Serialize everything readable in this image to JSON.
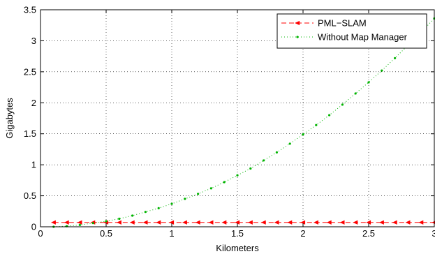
{
  "chart_data": {
    "type": "line",
    "xlabel": "Kilometers",
    "ylabel": "Gigabytes",
    "xlim": [
      0,
      3
    ],
    "ylim": [
      0,
      3.5
    ],
    "x_ticks": [
      "0",
      "0.5",
      "1",
      "1.5",
      "2",
      "2.5",
      "3"
    ],
    "y_ticks": [
      "0",
      "0.5",
      "1",
      "1.5",
      "2",
      "2.5",
      "3",
      "3.5"
    ],
    "grid": true,
    "legend_position": "top-right",
    "series": [
      {
        "name": "PML−SLAM",
        "color": "#ff0000",
        "line_style": "dashed",
        "marker": "left-triangle",
        "x": [
          0.1,
          0.2,
          0.3,
          0.4,
          0.5,
          0.6,
          0.7,
          0.8,
          0.9,
          1.0,
          1.1,
          1.2,
          1.3,
          1.4,
          1.5,
          1.6,
          1.7,
          1.8,
          1.9,
          2.0,
          2.1,
          2.2,
          2.3,
          2.4,
          2.5,
          2.6,
          2.7,
          2.8,
          2.9,
          3.0
        ],
        "y": [
          0.07,
          0.07,
          0.07,
          0.07,
          0.07,
          0.07,
          0.07,
          0.07,
          0.07,
          0.07,
          0.07,
          0.07,
          0.07,
          0.07,
          0.07,
          0.07,
          0.07,
          0.07,
          0.07,
          0.07,
          0.07,
          0.07,
          0.07,
          0.07,
          0.07,
          0.07,
          0.07,
          0.07,
          0.07,
          0.07
        ]
      },
      {
        "name": "Without Map Manager",
        "color": "#00b400",
        "line_style": "dotted",
        "marker": "point",
        "x": [
          0.1,
          0.2,
          0.3,
          0.4,
          0.5,
          0.6,
          0.7,
          0.8,
          0.9,
          1.0,
          1.1,
          1.2,
          1.3,
          1.4,
          1.5,
          1.6,
          1.7,
          1.8,
          1.9,
          2.0,
          2.1,
          2.2,
          2.3,
          2.4,
          2.5,
          2.6,
          2.7,
          2.8,
          2.9,
          3.0
        ],
        "y": [
          0.0,
          0.01,
          0.03,
          0.06,
          0.09,
          0.13,
          0.18,
          0.24,
          0.3,
          0.37,
          0.45,
          0.53,
          0.62,
          0.72,
          0.83,
          0.94,
          1.07,
          1.2,
          1.34,
          1.49,
          1.64,
          1.8,
          1.97,
          2.15,
          2.33,
          2.52,
          2.72,
          2.93,
          3.14,
          3.36
        ]
      }
    ]
  }
}
